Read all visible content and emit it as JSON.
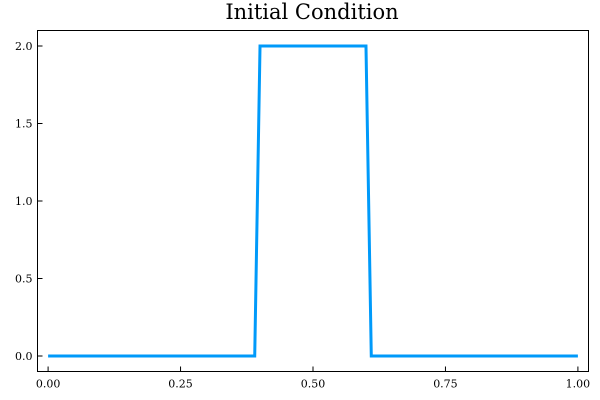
{
  "chart_data": {
    "type": "line",
    "title": "Initial Condition",
    "xlabel": "",
    "ylabel": "",
    "xlim": [
      -0.02,
      1.02
    ],
    "ylim": [
      -0.1,
      2.1
    ],
    "xticks": [
      0.0,
      0.25,
      0.5,
      0.75,
      1.0
    ],
    "xtick_labels": [
      "0.00",
      "0.25",
      "0.50",
      "0.75",
      "1.00"
    ],
    "yticks": [
      0.0,
      0.5,
      1.0,
      1.5,
      2.0
    ],
    "ytick_labels": [
      "0.0",
      "0.5",
      "1.0",
      "1.5",
      "2.0"
    ],
    "grid": false,
    "legend": "none",
    "series": [
      {
        "color": "#009AFA",
        "x": [
          0.0,
          0.39,
          0.4,
          0.6,
          0.61,
          1.0
        ],
        "y": [
          0.0,
          0.0,
          2.0,
          2.0,
          0.0,
          0.0
        ]
      }
    ]
  }
}
